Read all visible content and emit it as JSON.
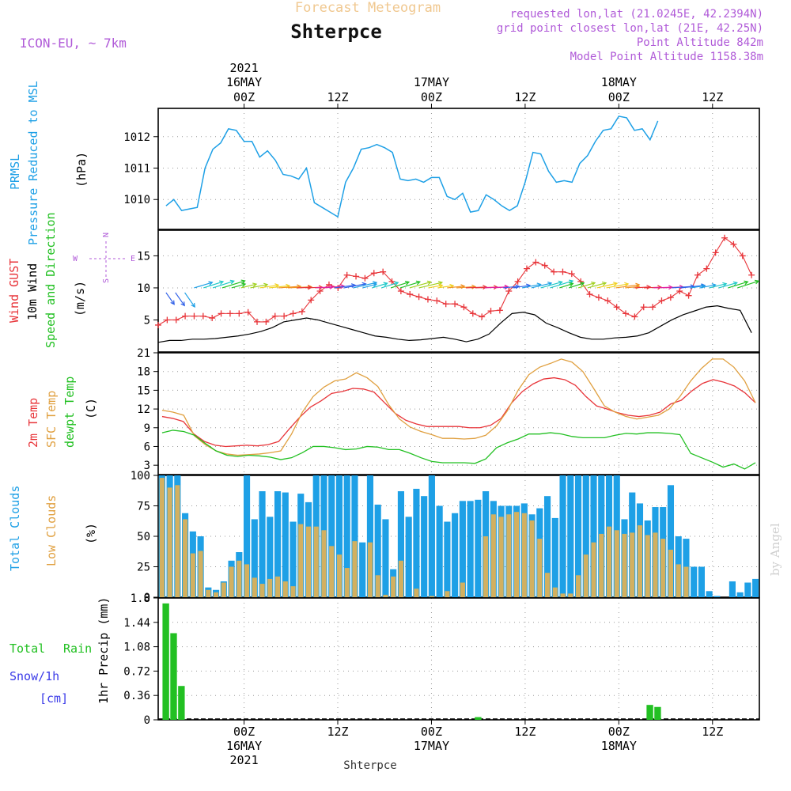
{
  "header": {
    "title": "Forecast Meteogram",
    "place": "Shterpce",
    "model": "ICON-EU, ~ 7km",
    "requested": "requested lon,lat (21.0245E, 42.2394N)",
    "grid_point": "grid point closest lon,lat (21E, 42.25N)",
    "point_altitude": "Point Altitude 842m",
    "model_point_altitude": "Model Point Altitude 1158.38m"
  },
  "footer": {
    "place": "Shterpce",
    "credit": "by Angel"
  },
  "time_axis": {
    "labels": [
      {
        "hour": "00Z",
        "day": "16MAY",
        "year": "2021"
      },
      {
        "hour": "12Z",
        "day": "",
        "year": ""
      },
      {
        "hour": "00Z",
        "day": "17MAY",
        "year": ""
      },
      {
        "hour": "12Z",
        "day": "",
        "year": ""
      },
      {
        "hour": "00Z",
        "day": "18MAY",
        "year": ""
      },
      {
        "hour": "12Z",
        "day": "",
        "year": ""
      }
    ]
  },
  "panels": {
    "pressure": {
      "label1": "PRMSL",
      "label2": "Pressure Reduced to MSL",
      "unit": "(hPa)"
    },
    "wind": {
      "label1": "Wind GUST",
      "label2": "10m Wind",
      "label3": "Speed and Direction",
      "unit": "(m/s)",
      "compass": {
        "n": "N",
        "s": "S",
        "e": "E",
        "w": "W"
      }
    },
    "temp": {
      "label1": "2m Temp",
      "label2": "SFC Temp",
      "label3": "dewpt Temp",
      "unit": "(C)"
    },
    "clouds": {
      "label1": "Total Clouds",
      "label2": "Low Clouds",
      "unit": "(%)"
    },
    "precip": {
      "label1": "Total",
      "label1b": "Rain",
      "label2": "Snow/1h",
      "label3": "[cm]",
      "unit": "1hr Precip (mm)"
    }
  },
  "colors": {
    "pressure": "#1ea0e6",
    "gust": "#e8353a",
    "wind": "#000000",
    "temp2m": "#e8353a",
    "sfc": "#e0a040",
    "dewpt": "#22c022",
    "total_clouds": "#1ea0e6",
    "low_clouds": "#d2b060",
    "rain": "#22c022",
    "snow": "#3a3ae8",
    "title": "#f0c890",
    "meta": "#b05ad8"
  },
  "chart_data": [
    {
      "type": "line",
      "title": "PRMSL Pressure Reduced to MSL",
      "ylabel": "(hPa)",
      "ylim": [
        1009.05,
        1012.9
      ],
      "yticks": [
        1010,
        1011,
        1012
      ],
      "x_hours_from_start": [
        0,
        1,
        2,
        3,
        4,
        5,
        6,
        7,
        8,
        9,
        10,
        11,
        12,
        13,
        14,
        15,
        16,
        17,
        18,
        19,
        20,
        21,
        22,
        23,
        24,
        25,
        26,
        27,
        28,
        29,
        30,
        31,
        32,
        33,
        34,
        35,
        36,
        37,
        38,
        39,
        40,
        41,
        42,
        43,
        44,
        45,
        46,
        47,
        48,
        49,
        50,
        51,
        52,
        53,
        54,
        55,
        56,
        57,
        58,
        59,
        60,
        61,
        62,
        63
      ],
      "series": [
        {
          "name": "PRMSL",
          "values": [
            1009.8,
            1010.0,
            1009.65,
            1009.7,
            1009.75,
            1011.0,
            1011.6,
            1011.8,
            1012.25,
            1012.2,
            1011.85,
            1011.85,
            1011.35,
            1011.55,
            1011.25,
            1010.8,
            1010.75,
            1010.65,
            1011.0,
            1009.9,
            1009.75,
            1009.6,
            1009.45,
            1010.55,
            1011.0,
            1011.6,
            1011.65,
            1011.75,
            1011.65,
            1011.5,
            1010.65,
            1010.6,
            1010.65,
            1010.55,
            1010.7,
            1010.7,
            1010.1,
            1010.0,
            1010.2,
            1009.6,
            1009.65,
            1010.15,
            1010.0,
            1009.8,
            1009.65,
            1009.8,
            1010.55,
            1011.5,
            1011.45,
            1010.9,
            1010.55,
            1010.6,
            1010.55,
            1011.15,
            1011.4,
            1011.85,
            1012.2,
            1012.25,
            1012.65,
            1012.6,
            1012.2,
            1012.25,
            1011.9,
            1012.5
          ]
        }
      ]
    },
    {
      "type": "line",
      "title": "Wind GUST / 10m Wind Speed and Direction",
      "ylabel": "(m/s)",
      "ylim": [
        0,
        19
      ],
      "yticks": [
        5,
        10,
        15
      ],
      "series": [
        {
          "name": "Wind GUST",
          "values": [
            4.2,
            5.0,
            5.0,
            5.6,
            5.6,
            5.6,
            5.3,
            6.0,
            6.0,
            6.0,
            6.2,
            4.7,
            4.7,
            5.6,
            5.6,
            6.0,
            6.3,
            8.1,
            9.5,
            10.5,
            10.0,
            12.0,
            11.8,
            11.5,
            12.3,
            12.5,
            11.0,
            9.5,
            9.0,
            8.6,
            8.2,
            8.0,
            7.5,
            7.5,
            7.0,
            6.0,
            5.5,
            6.4,
            6.5,
            9.5,
            11.0,
            13.0,
            14.0,
            13.5,
            12.5,
            12.5,
            12.2,
            11.0,
            9.0,
            8.5,
            8.0,
            7.0,
            6.0,
            5.5,
            7.0,
            7.0,
            8.0,
            8.5,
            9.5,
            8.8,
            12.0,
            13.0,
            15.5,
            17.8,
            16.8,
            15.0,
            12.0
          ]
        },
        {
          "name": "10m Wind",
          "values": [
            1.5,
            1.8,
            1.8,
            2.0,
            2.0,
            2.1,
            2.3,
            2.5,
            2.8,
            3.2,
            3.8,
            4.7,
            5.0,
            5.3,
            5.0,
            4.5,
            4.0,
            3.5,
            3.0,
            2.5,
            2.3,
            2.0,
            1.8,
            1.9,
            2.1,
            2.3,
            2.0,
            1.6,
            2.0,
            2.8,
            4.5,
            6.0,
            6.2,
            5.8,
            4.5,
            3.8,
            3.0,
            2.3,
            2.0,
            2.0,
            2.2,
            2.3,
            2.5,
            3.0,
            4.0,
            5.0,
            5.8,
            6.4,
            7.0,
            7.2,
            6.8,
            6.5,
            3.0
          ]
        },
        {
          "name": "Speed and Direction",
          "arrows": "row of coloured wind barbs near 10 m/s pointing mostly toward the east-northeast"
        }
      ]
    },
    {
      "type": "line",
      "title": "2m Temp / SFC Temp / dewpt Temp",
      "ylabel": "(C)",
      "ylim": [
        1.5,
        21
      ],
      "yticks": [
        3,
        6,
        9,
        12,
        15,
        18,
        21
      ],
      "series": [
        {
          "name": "2m Temp",
          "values": [
            10.8,
            10.5,
            10.0,
            8.0,
            6.8,
            6.2,
            6.0,
            6.1,
            6.2,
            6.1,
            6.3,
            6.8,
            8.8,
            10.7,
            12.3,
            13.3,
            14.5,
            14.8,
            15.3,
            15.2,
            14.7,
            13.0,
            11.3,
            10.2,
            9.6,
            9.2,
            9.2,
            9.2,
            9.2,
            9.0,
            9.0,
            9.4,
            10.5,
            13.0,
            14.8,
            16.0,
            16.8,
            17.0,
            16.7,
            15.8,
            14.0,
            12.5,
            12.0,
            11.4,
            11.0,
            10.8,
            11.0,
            11.5,
            12.8,
            13.4,
            14.9,
            16.1,
            16.7,
            16.3,
            15.7,
            14.6,
            13.0
          ]
        },
        {
          "name": "SFC Temp",
          "values": [
            11.8,
            11.5,
            11.0,
            7.7,
            6.3,
            5.3,
            4.8,
            4.6,
            4.7,
            4.8,
            5.0,
            5.3,
            8.0,
            11.5,
            14.0,
            15.5,
            16.5,
            16.8,
            17.8,
            17.0,
            15.6,
            12.7,
            10.4,
            9.1,
            8.4,
            7.9,
            7.3,
            7.3,
            7.2,
            7.3,
            7.8,
            9.3,
            11.7,
            15.0,
            17.5,
            18.7,
            19.3,
            20.0,
            19.5,
            18.0,
            15.3,
            12.5,
            11.5,
            10.8,
            10.4,
            10.7,
            11.0,
            12.0,
            14.0,
            16.5,
            18.5,
            20.0,
            20.0,
            18.7,
            16.5,
            13.0
          ]
        },
        {
          "name": "dewpt Temp",
          "values": [
            8.2,
            8.6,
            8.4,
            7.8,
            6.5,
            5.3,
            4.6,
            4.4,
            4.6,
            4.5,
            4.3,
            3.9,
            4.2,
            5.0,
            6.0,
            6.0,
            5.8,
            5.5,
            5.6,
            6.0,
            5.9,
            5.5,
            5.5,
            4.9,
            4.2,
            3.6,
            3.4,
            3.4,
            3.4,
            3.3,
            4.0,
            5.8,
            6.6,
            7.2,
            8.0,
            8.0,
            8.2,
            8.0,
            7.6,
            7.4,
            7.4,
            7.4,
            7.8,
            8.1,
            8.0,
            8.2,
            8.2,
            8.1,
            7.9,
            4.9,
            4.2,
            3.5,
            2.7,
            3.2,
            2.4,
            3.4
          ]
        }
      ]
    },
    {
      "type": "bar",
      "title": "Total Clouds / Low Clouds",
      "ylabel": "(%)",
      "ylim": [
        0,
        100
      ],
      "yticks": [
        0,
        25,
        50,
        75,
        100
      ],
      "series": [
        {
          "name": "Total Clouds",
          "values": [
            100,
            100,
            100,
            69,
            54,
            50,
            8,
            6,
            13,
            30,
            37,
            100,
            64,
            87,
            66,
            87,
            86,
            62,
            85,
            78,
            100,
            100,
            100,
            100,
            100,
            100,
            45,
            100,
            76,
            64,
            23,
            87,
            66,
            89,
            83,
            100,
            75,
            62,
            69,
            79,
            79,
            80,
            87,
            79,
            75,
            75,
            75,
            77,
            68,
            73,
            83,
            65,
            100,
            100,
            100,
            100,
            100,
            100,
            100,
            100,
            64,
            86,
            77,
            63,
            74,
            74,
            92,
            50,
            48,
            25,
            25,
            5,
            1,
            0,
            13,
            4,
            12,
            15
          ]
        },
        {
          "name": "Low Clouds",
          "values": [
            98,
            90,
            92,
            64,
            36,
            38,
            6,
            4,
            12,
            25,
            30,
            27,
            16,
            11,
            15,
            17,
            13,
            9,
            60,
            58,
            58,
            55,
            42,
            35,
            24,
            46,
            0,
            45,
            18,
            2,
            17,
            30,
            0,
            7,
            0,
            1,
            0,
            5,
            0,
            12,
            0,
            0,
            50,
            68,
            66,
            68,
            70,
            69,
            63,
            48,
            20,
            8,
            3,
            3,
            18,
            35,
            45,
            52,
            58,
            55,
            52,
            53,
            59,
            51,
            53,
            48,
            39,
            27,
            25,
            0,
            0,
            0,
            0,
            0,
            0,
            0,
            0,
            0
          ]
        }
      ]
    },
    {
      "type": "bar",
      "title": "1hr Precip",
      "ylabel": "1hr Precip (mm)",
      "ylim": [
        0,
        1.8
      ],
      "yticks": [
        0,
        0.36,
        0.72,
        1.08,
        1.44,
        1.8
      ],
      "series": [
        {
          "name": "Total Rain",
          "bars": [
            {
              "hour_offset": 1,
              "value": 1.72
            },
            {
              "hour_offset": 2,
              "value": 1.28
            },
            {
              "hour_offset": 3,
              "value": 0.5
            },
            {
              "hour_offset": 41,
              "value": 0.04
            },
            {
              "hour_offset": 63,
              "value": 0.22
            },
            {
              "hour_offset": 64,
              "value": 0.19
            }
          ]
        }
      ]
    }
  ]
}
